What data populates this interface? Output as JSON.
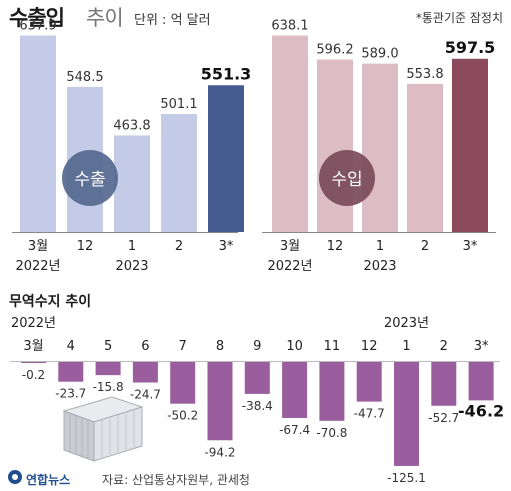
{
  "header": {
    "title": "수출입",
    "title_suffix": "추이",
    "unit": "단위 : 억 달러",
    "note": "*통관기준 잠정치"
  },
  "section2_title": "무역수지 추이",
  "credit": "연합뉴스",
  "source": "자료: 산업통상자원부, 관세청",
  "colors": {
    "export_bar": "#c3cbe6",
    "export_highlight": "#455a8e",
    "export_badge": "#55688f",
    "import_bar": "#dcbdc5",
    "import_highlight": "#8b4a5c",
    "import_badge": "#7a4a5a",
    "balance_bar": "#9a5e9f"
  },
  "chart_data": [
    {
      "type": "bar",
      "badge": "수출",
      "categories": [
        "3월",
        "12",
        "1",
        "2",
        "3*"
      ],
      "year_labels": [
        "2022년",
        "",
        "2023",
        "",
        ""
      ],
      "values": [
        637.9,
        548.5,
        463.8,
        501.1,
        551.3
      ],
      "value_labels": [
        "637.9",
        "548.5",
        "463.8",
        "501.1",
        "551.3"
      ],
      "highlight_index": 4,
      "ylim": [
        0,
        700
      ]
    },
    {
      "type": "bar",
      "badge": "수입",
      "categories": [
        "3월",
        "12",
        "1",
        "2",
        "3*"
      ],
      "year_labels": [
        "2022년",
        "",
        "2023",
        "",
        ""
      ],
      "values": [
        638.1,
        596.2,
        589.0,
        553.8,
        597.5
      ],
      "value_labels": [
        "638.1",
        "596.2",
        "589.0",
        "553.8",
        "597.5"
      ],
      "highlight_index": 4,
      "ylim": [
        0,
        700
      ]
    },
    {
      "type": "bar",
      "categories": [
        "3월",
        "4",
        "5",
        "6",
        "7",
        "8",
        "9",
        "10",
        "11",
        "12",
        "1",
        "2",
        "3*"
      ],
      "year_labels": [
        {
          "text": "2022년",
          "index": 0
        },
        {
          "text": "2023년",
          "index": 10
        }
      ],
      "values": [
        -0.2,
        -23.7,
        -15.8,
        -24.7,
        -50.2,
        -94.2,
        -38.4,
        -67.4,
        -70.8,
        -47.7,
        -125.1,
        -52.7,
        -46.2
      ],
      "value_labels": [
        "-0.2",
        "-23.7",
        "-15.8",
        "-24.7",
        "-50.2",
        "-94.2",
        "-38.4",
        "-67.4",
        "-70.8",
        "-47.7",
        "-125.1",
        "-52.7",
        "-46.2"
      ],
      "highlight_index": 12,
      "ylim": [
        -130,
        0
      ]
    }
  ]
}
